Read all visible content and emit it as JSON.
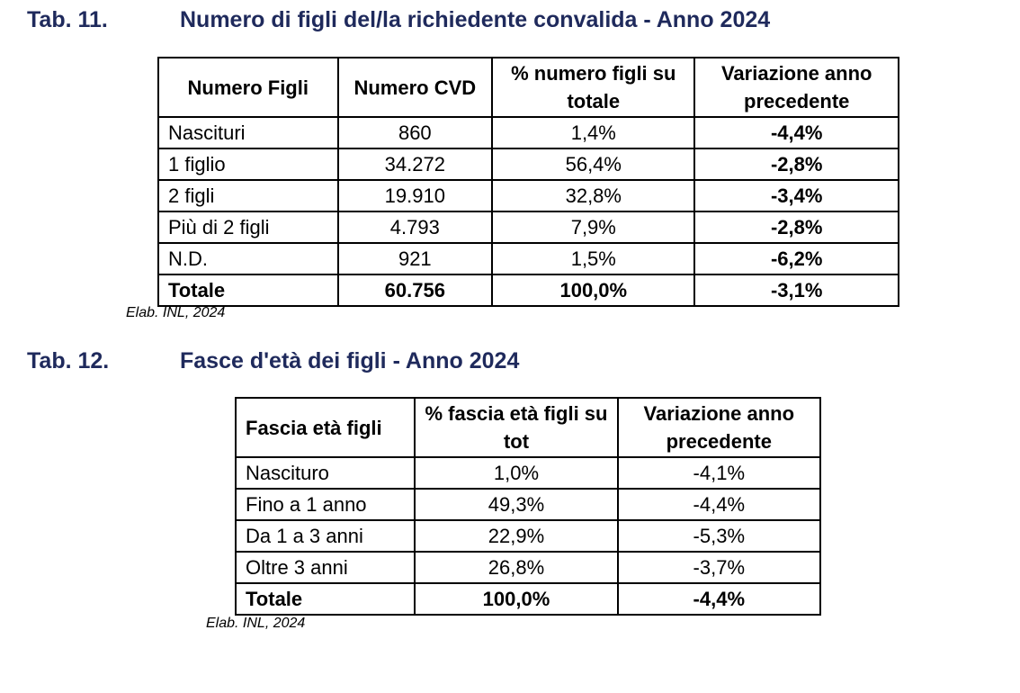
{
  "tab11": {
    "number": "Tab. 11.",
    "title": "Numero di figli del/la richiedente convalida - Anno 2024",
    "headers": [
      "Numero Figli",
      "Numero CVD",
      "% numero figli su totale",
      "Variazione anno precedente"
    ],
    "rows": [
      [
        "Nascituri",
        "860",
        "1,4%",
        "-4,4%"
      ],
      [
        "1 figlio",
        "34.272",
        "56,4%",
        "-2,8%"
      ],
      [
        "2 figli",
        "19.910",
        "32,8%",
        "-3,4%"
      ],
      [
        "Più di 2 figli",
        "4.793",
        "7,9%",
        "-2,8%"
      ],
      [
        "N.D.",
        "921",
        "1,5%",
        "-6,2%"
      ]
    ],
    "total": [
      "Totale",
      "60.756",
      "100,0%",
      "-3,1%"
    ],
    "source": "Elab. INL, 2024"
  },
  "tab12": {
    "number": "Tab. 12.",
    "title": "Fasce d'età dei figli - Anno 2024",
    "headers": [
      "Fascia età figli",
      "% fascia età figli su tot",
      "Variazione anno precedente"
    ],
    "rows": [
      [
        "Nascituro",
        "1,0%",
        "-4,1%"
      ],
      [
        "Fino a 1 anno",
        "49,3%",
        "-4,4%"
      ],
      [
        "Da 1 a 3 anni",
        "22,9%",
        "-5,3%"
      ],
      [
        "Oltre 3 anni",
        "26,8%",
        "-3,7%"
      ]
    ],
    "total": [
      "Totale",
      "100,0%",
      "-4,4%"
    ],
    "source": "Elab. INL, 2024"
  }
}
